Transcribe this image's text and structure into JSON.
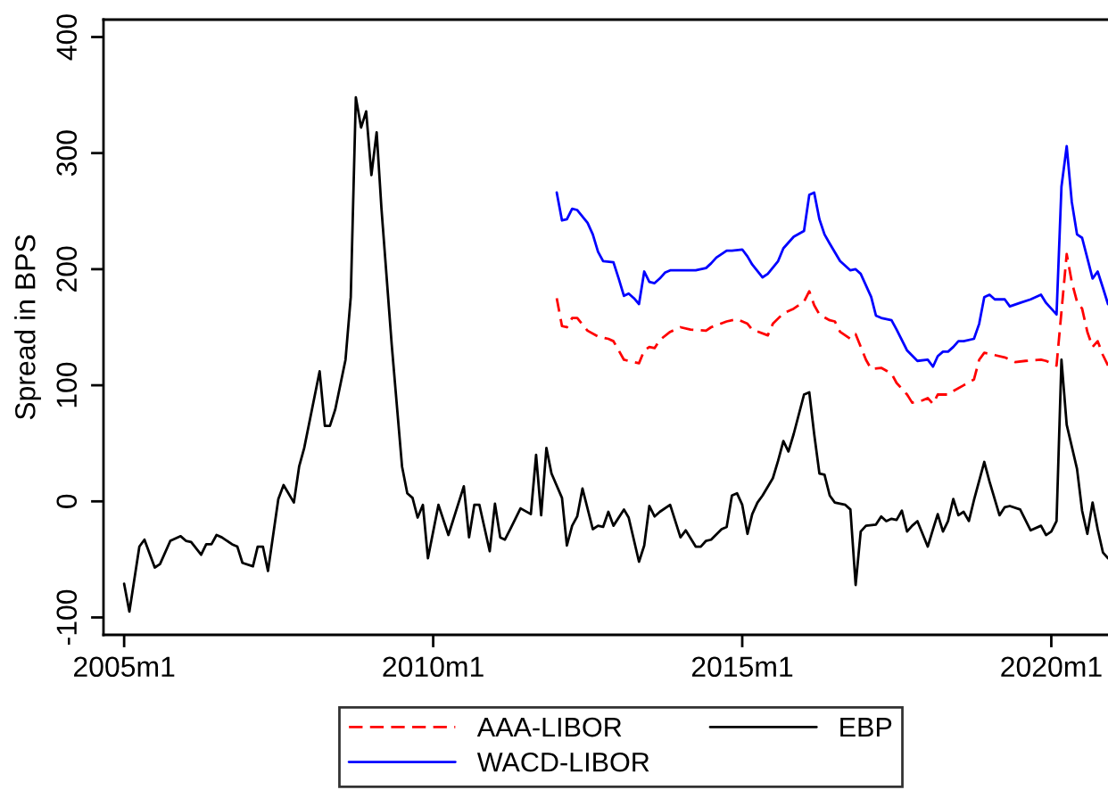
{
  "chart_data": {
    "type": "line",
    "ylabel": "Spread in BPS",
    "xlim": [
      "2004-09",
      "2020-12"
    ],
    "xticks": [
      {
        "value": "2005-01",
        "label": "2005m1"
      },
      {
        "value": "2010-01",
        "label": "2010m1"
      },
      {
        "value": "2015-01",
        "label": "2015m1"
      },
      {
        "value": "2020-01",
        "label": "2020m1"
      }
    ],
    "ylim": [
      -115,
      415
    ],
    "yticks": [
      -100,
      0,
      100,
      200,
      300,
      400
    ],
    "legend": "bottom",
    "series": [
      {
        "name": "AAA-LIBOR",
        "color": "#ff0000",
        "line_style": "dashed",
        "x": [
          "2012-01",
          "2012-02",
          "2012-03",
          "2012-04",
          "2012-05",
          "2012-07",
          "2012-09",
          "2012-11",
          "2012-12",
          "2013-01",
          "2013-02",
          "2013-03",
          "2013-05",
          "2013-06",
          "2013-07",
          "2013-08",
          "2013-09",
          "2013-11",
          "2014-01",
          "2014-03",
          "2014-06",
          "2014-07",
          "2014-10",
          "2014-12",
          "2015-02",
          "2015-03",
          "2015-06",
          "2015-07",
          "2015-09",
          "2015-11",
          "2016-01",
          "2016-02",
          "2016-03",
          "2016-04",
          "2016-06",
          "2016-07",
          "2016-08",
          "2016-10",
          "2016-11",
          "2017-01",
          "2017-02",
          "2017-04",
          "2017-06",
          "2017-07",
          "2017-09",
          "2017-10",
          "2017-12",
          "2018-01",
          "2018-02",
          "2018-03",
          "2018-05",
          "2018-06",
          "2018-08",
          "2018-10",
          "2018-11",
          "2018-12",
          "2019-02",
          "2019-04",
          "2019-06",
          "2019-08",
          "2019-11",
          "2019-12",
          "2020-02",
          "2020-04",
          "2020-05",
          "2020-06",
          "2020-07",
          "2020-08",
          "2020-09",
          "2020-10",
          "2020-11",
          "2020-12"
        ],
        "values": [
          175,
          151,
          150,
          158,
          158,
          147,
          142,
          140,
          138,
          130,
          122,
          121,
          119,
          130,
          133,
          132,
          139,
          146,
          150,
          148,
          147,
          150,
          155,
          157,
          153,
          148,
          143,
          153,
          162,
          166,
          172,
          181,
          169,
          161,
          156,
          155,
          146,
          140,
          144,
          122,
          114,
          115,
          110,
          102,
          92,
          85,
          87,
          89,
          84,
          92,
          92,
          95,
          100,
          105,
          122,
          128,
          126,
          124,
          120,
          121,
          122,
          121,
          117,
          213,
          189,
          172,
          166,
          146,
          133,
          138,
          126,
          117
        ]
      },
      {
        "name": "WACD-LIBOR",
        "color": "#0000ff",
        "line_style": "solid",
        "x": [
          "2012-01",
          "2012-02",
          "2012-03",
          "2012-04",
          "2012-05",
          "2012-07",
          "2012-08",
          "2012-09",
          "2012-10",
          "2012-12",
          "2013-01",
          "2013-02",
          "2013-03",
          "2013-04",
          "2013-05",
          "2013-06",
          "2013-07",
          "2013-08",
          "2013-09",
          "2013-10",
          "2013-11",
          "2014-01",
          "2014-04",
          "2014-06",
          "2014-07",
          "2014-08",
          "2014-10",
          "2014-11",
          "2015-01",
          "2015-02",
          "2015-03",
          "2015-05",
          "2015-06",
          "2015-08",
          "2015-09",
          "2015-11",
          "2016-01",
          "2016-02",
          "2016-03",
          "2016-04",
          "2016-05",
          "2016-06",
          "2016-08",
          "2016-10",
          "2016-11",
          "2016-12",
          "2017-02",
          "2017-03",
          "2017-04",
          "2017-06",
          "2017-07",
          "2017-09",
          "2017-11",
          "2018-01",
          "2018-02",
          "2018-03",
          "2018-04",
          "2018-05",
          "2018-06",
          "2018-07",
          "2018-08",
          "2018-10",
          "2018-11",
          "2018-12",
          "2019-01",
          "2019-02",
          "2019-04",
          "2019-05",
          "2019-07",
          "2019-09",
          "2019-11",
          "2019-12",
          "2020-02",
          "2020-03",
          "2020-04",
          "2020-05",
          "2020-06",
          "2020-07",
          "2020-09",
          "2020-10",
          "2020-11",
          "2020-12"
        ],
        "values": [
          266,
          242,
          243,
          252,
          251,
          240,
          230,
          215,
          207,
          206,
          192,
          177,
          179,
          175,
          170,
          198,
          189,
          188,
          192,
          197,
          199,
          199,
          199,
          201,
          205,
          210,
          216,
          216,
          217,
          211,
          204,
          193,
          196,
          207,
          218,
          228,
          233,
          264,
          266,
          243,
          230,
          222,
          207,
          199,
          200,
          196,
          176,
          160,
          158,
          156,
          148,
          130,
          121,
          122,
          116,
          125,
          129,
          129,
          133,
          138,
          138,
          140,
          153,
          176,
          178,
          174,
          174,
          168,
          171,
          174,
          178,
          171,
          161,
          271,
          306,
          258,
          230,
          227,
          192,
          198,
          184,
          170
        ]
      },
      {
        "name": "EBP",
        "color": "#000000",
        "line_style": "solid",
        "x": [
          "2005-01",
          "2005-02",
          "2005-04",
          "2005-05",
          "2005-07",
          "2005-08",
          "2005-10",
          "2005-12",
          "2006-01",
          "2006-02",
          "2006-04",
          "2006-05",
          "2006-06",
          "2006-07",
          "2006-08",
          "2006-10",
          "2006-11",
          "2006-12",
          "2007-02",
          "2007-03",
          "2007-04",
          "2007-05",
          "2007-07",
          "2007-08",
          "2007-10",
          "2007-11",
          "2007-12",
          "2008-03",
          "2008-04",
          "2008-05",
          "2008-06",
          "2008-08",
          "2008-09",
          "2008-10",
          "2008-11",
          "2008-12",
          "2009-01",
          "2009-02",
          "2009-03",
          "2009-05",
          "2009-07",
          "2009-08",
          "2009-09",
          "2009-10",
          "2009-11",
          "2009-12",
          "2010-02",
          "2010-04",
          "2010-07",
          "2010-08",
          "2010-09",
          "2010-10",
          "2010-12",
          "2011-01",
          "2011-02",
          "2011-03",
          "2011-04",
          "2011-06",
          "2011-08",
          "2011-09",
          "2011-10",
          "2011-11",
          "2011-12",
          "2012-02",
          "2012-03",
          "2012-04",
          "2012-05",
          "2012-06",
          "2012-08",
          "2012-09",
          "2012-10",
          "2012-11",
          "2012-12",
          "2013-02",
          "2013-03",
          "2013-05",
          "2013-06",
          "2013-07",
          "2013-08",
          "2013-09",
          "2013-11",
          "2014-01",
          "2014-02",
          "2014-04",
          "2014-05",
          "2014-06",
          "2014-07",
          "2014-09",
          "2014-10",
          "2014-11",
          "2014-12",
          "2015-01",
          "2015-02",
          "2015-03",
          "2015-04",
          "2015-05",
          "2015-07",
          "2015-08",
          "2015-09",
          "2015-10",
          "2015-11",
          "2016-01",
          "2016-02",
          "2016-03",
          "2016-04",
          "2016-05",
          "2016-06",
          "2016-07",
          "2016-09",
          "2016-10",
          "2016-11",
          "2016-12",
          "2017-01",
          "2017-03",
          "2017-04",
          "2017-05",
          "2017-06",
          "2017-07",
          "2017-08",
          "2017-09",
          "2017-10",
          "2017-11",
          "2018-01",
          "2018-02",
          "2018-03",
          "2018-04",
          "2018-05",
          "2018-06",
          "2018-07",
          "2018-08",
          "2018-09",
          "2018-10",
          "2018-12",
          "2019-01",
          "2019-03",
          "2019-04",
          "2019-05",
          "2019-07",
          "2019-09",
          "2019-11",
          "2019-12",
          "2020-01",
          "2020-02",
          "2020-03",
          "2020-04",
          "2020-06",
          "2020-07",
          "2020-08",
          "2020-09",
          "2020-10",
          "2020-11",
          "2020-12"
        ],
        "values": [
          -71,
          -95,
          -39,
          -33,
          -57,
          -54,
          -34,
          -30,
          -34,
          -35,
          -46,
          -37,
          -37,
          -29,
          -31,
          -37,
          -39,
          -53,
          -56,
          -39,
          -39,
          -60,
          2,
          14,
          -1,
          30,
          46,
          112,
          65,
          65,
          79,
          122,
          176,
          348,
          322,
          336,
          281,
          318,
          253,
          135,
          30,
          7,
          3,
          -14,
          -3,
          -49,
          -3,
          -29,
          13,
          -31,
          -3,
          -3,
          -43,
          -2,
          -31,
          -33,
          -24,
          -6,
          -11,
          40,
          -12,
          46,
          24,
          3,
          -38,
          -21,
          -13,
          11,
          -24,
          -21,
          -22,
          -9,
          -21,
          -7,
          -14,
          -52,
          -38,
          -4,
          -13,
          -9,
          -3,
          -31,
          -25,
          -39,
          -39,
          -34,
          -33,
          -24,
          -22,
          5,
          7,
          -3,
          -28,
          -11,
          -1,
          5,
          20,
          35,
          52,
          43,
          58,
          92,
          94,
          58,
          24,
          23,
          5,
          -1,
          -3,
          -7,
          -72,
          -26,
          -21,
          -20,
          -13,
          -17,
          -15,
          -16,
          -8,
          -26,
          -21,
          -17,
          -39,
          -24,
          -11,
          -26,
          -17,
          2,
          -12,
          -9,
          -17,
          1,
          34,
          17,
          -12,
          -5,
          -4,
          -7,
          -25,
          -21,
          -29,
          -26,
          -17,
          122,
          66,
          28,
          -8,
          -28,
          -1,
          -24,
          -44,
          -49
        ]
      }
    ]
  }
}
